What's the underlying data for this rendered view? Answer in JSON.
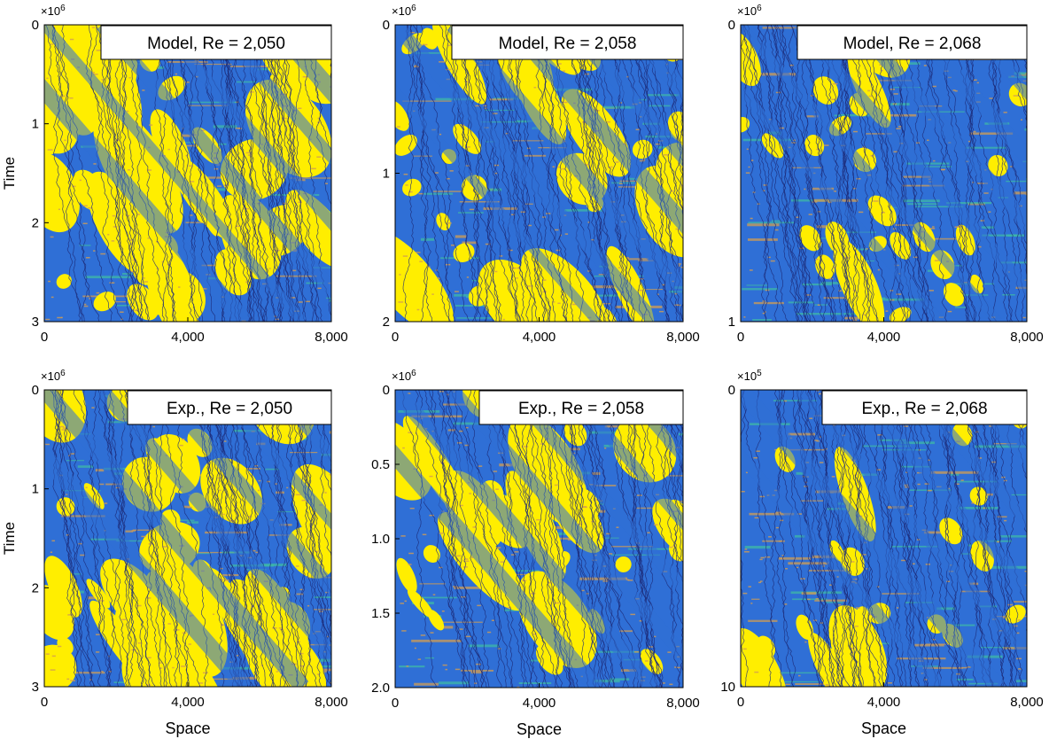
{
  "chart_data": [
    {
      "type": "heatmap",
      "panel": "top-left",
      "label": "Model, Re = 2,050",
      "ylabel": "Time",
      "xlabel": "",
      "y_multiplier": "×10",
      "y_multiplier_exp": "6",
      "xlim": [
        0,
        8000
      ],
      "ylim": [
        0,
        3
      ],
      "x_ticks": [
        0,
        4000,
        8000
      ],
      "x_tick_labels": [
        "0",
        "4,000",
        "8,000"
      ],
      "y_ticks": [
        0,
        1,
        2,
        3
      ],
      "y_tick_labels": [
        "0",
        "1",
        "2",
        "3"
      ],
      "colors": {
        "laminar": "#ffee00",
        "turbulent": "#2f6fd6",
        "intermediate": "#3fb8a5",
        "fronts": "#1c2a78",
        "edge": "#d29c52"
      },
      "laminar_fraction": 0.55,
      "stripe_angle": 0.32,
      "seed": 11
    },
    {
      "type": "heatmap",
      "panel": "top-middle",
      "label": "Model, Re = 2,058",
      "ylabel": "",
      "xlabel": "",
      "y_multiplier": "×10",
      "y_multiplier_exp": "6",
      "xlim": [
        0,
        8000
      ],
      "ylim": [
        0,
        2
      ],
      "x_ticks": [
        0,
        4000,
        8000
      ],
      "x_tick_labels": [
        "0",
        "4,000",
        "8,000"
      ],
      "y_ticks": [
        0,
        1,
        2
      ],
      "y_tick_labels": [
        "0",
        "1",
        "2"
      ],
      "colors": {
        "laminar": "#ffee00",
        "turbulent": "#2f6fd6",
        "intermediate": "#3fb8a5",
        "fronts": "#1c2a78",
        "edge": "#d29c52"
      },
      "laminar_fraction": 0.42,
      "stripe_angle": 0.38,
      "seed": 23
    },
    {
      "type": "heatmap",
      "panel": "top-right",
      "label": "Model, Re = 2,068",
      "ylabel": "",
      "xlabel": "",
      "y_multiplier": "×10",
      "y_multiplier_exp": "6",
      "xlim": [
        0,
        8000
      ],
      "ylim": [
        0,
        1
      ],
      "x_ticks": [
        0,
        4000,
        8000
      ],
      "x_tick_labels": [
        "0",
        "4,000",
        "8,000"
      ],
      "y_ticks": [
        0,
        1
      ],
      "y_tick_labels": [
        "0",
        "1"
      ],
      "colors": {
        "laminar": "#ffee00",
        "turbulent": "#2f6fd6",
        "intermediate": "#3fb8a5",
        "fronts": "#1c2a78",
        "edge": "#d29c52"
      },
      "laminar_fraction": 0.28,
      "stripe_angle": 0.34,
      "seed": 37
    },
    {
      "type": "heatmap",
      "panel": "bottom-left",
      "label": "Exp., Re = 2,050",
      "ylabel": "Time",
      "xlabel": "Space",
      "y_multiplier": "×10",
      "y_multiplier_exp": "6",
      "xlim": [
        0,
        8000
      ],
      "ylim": [
        0,
        3
      ],
      "x_ticks": [
        0,
        4000,
        8000
      ],
      "x_tick_labels": [
        "0",
        "4,000",
        "8,000"
      ],
      "y_ticks": [
        0,
        1,
        2,
        3
      ],
      "y_tick_labels": [
        "0",
        "1",
        "2",
        "3"
      ],
      "colors": {
        "laminar": "#ffee00",
        "turbulent": "#2f6fd6",
        "intermediate": "#3fb8a5",
        "fronts": "#1c2a78",
        "edge": "#d29c52"
      },
      "laminar_fraction": 0.5,
      "stripe_angle": 0.35,
      "seed": 51
    },
    {
      "type": "heatmap",
      "panel": "bottom-middle",
      "label": "Exp., Re = 2,058",
      "ylabel": "",
      "xlabel": "Space",
      "y_multiplier": "×10",
      "y_multiplier_exp": "6",
      "xlim": [
        0,
        8000
      ],
      "ylim": [
        0,
        2.0
      ],
      "x_ticks": [
        0,
        4000,
        8000
      ],
      "x_tick_labels": [
        "0",
        "4,000",
        "8,000"
      ],
      "y_ticks": [
        0,
        0.5,
        1.0,
        1.5,
        2.0
      ],
      "y_tick_labels": [
        "0",
        "0.5",
        "1.0",
        "1.5",
        "2.0"
      ],
      "colors": {
        "laminar": "#ffee00",
        "turbulent": "#2f6fd6",
        "intermediate": "#3fb8a5",
        "fronts": "#1c2a78",
        "edge": "#d29c52"
      },
      "laminar_fraction": 0.36,
      "stripe_angle": 0.36,
      "seed": 67
    },
    {
      "type": "heatmap",
      "panel": "bottom-right",
      "label": "Exp., Re = 2,068",
      "ylabel": "",
      "xlabel": "Space",
      "y_multiplier": "×10",
      "y_multiplier_exp": "5",
      "xlim": [
        0,
        8000
      ],
      "ylim": [
        0,
        10
      ],
      "x_ticks": [
        0,
        4000,
        8000
      ],
      "x_tick_labels": [
        "0",
        "4,000",
        "8,000"
      ],
      "y_ticks": [
        0,
        10
      ],
      "y_tick_labels": [
        "0",
        "10"
      ],
      "colors": {
        "laminar": "#ffee00",
        "turbulent": "#2f6fd6",
        "intermediate": "#3fb8a5",
        "fronts": "#1c2a78",
        "edge": "#d29c52"
      },
      "laminar_fraction": 0.2,
      "stripe_angle": 0.3,
      "seed": 83
    }
  ]
}
